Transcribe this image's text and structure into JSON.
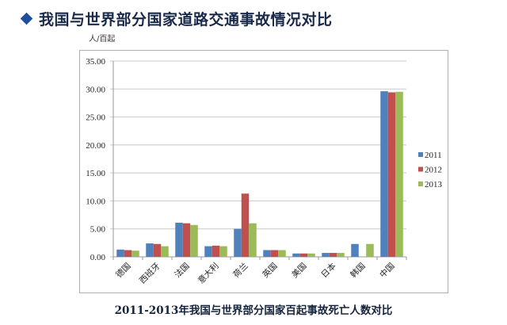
{
  "header": {
    "title": "我国与世界部分国家道路交通事故情况对比",
    "icon": "diamond-bullet-icon",
    "accent_color": "#1f4e9c"
  },
  "chart_data": {
    "type": "bar",
    "title": "2011-2013年我国与世界部分国家百起事故死亡人数对比",
    "ylabel": "人/百起",
    "xlabel": "",
    "ylim": [
      0,
      35
    ],
    "yticks": [
      "0.00",
      "5.00",
      "10.00",
      "15.00",
      "20.00",
      "25.00",
      "30.00",
      "35.00"
    ],
    "grid": true,
    "legend_position": "right",
    "categories": [
      "德国",
      "西班牙",
      "法国",
      "意大利",
      "荷兰",
      "英国",
      "美国",
      "日本",
      "韩国",
      "中国"
    ],
    "series": [
      {
        "name": "2011",
        "color": "#4f81bd",
        "values": [
          1.3,
          2.4,
          6.1,
          1.9,
          5.0,
          1.2,
          0.6,
          0.7,
          2.3,
          29.6
        ]
      },
      {
        "name": "2012",
        "color": "#c0504d",
        "values": [
          1.2,
          2.3,
          6.0,
          2.0,
          11.3,
          1.2,
          0.6,
          0.7,
          null,
          29.4
        ]
      },
      {
        "name": "2013",
        "color": "#9bbb59",
        "values": [
          1.1,
          1.9,
          5.7,
          1.9,
          6.0,
          1.2,
          0.6,
          0.7,
          2.3,
          29.5
        ]
      }
    ]
  },
  "caption": "2011-2013年我国与世界部分国家百起事故死亡人数对比"
}
